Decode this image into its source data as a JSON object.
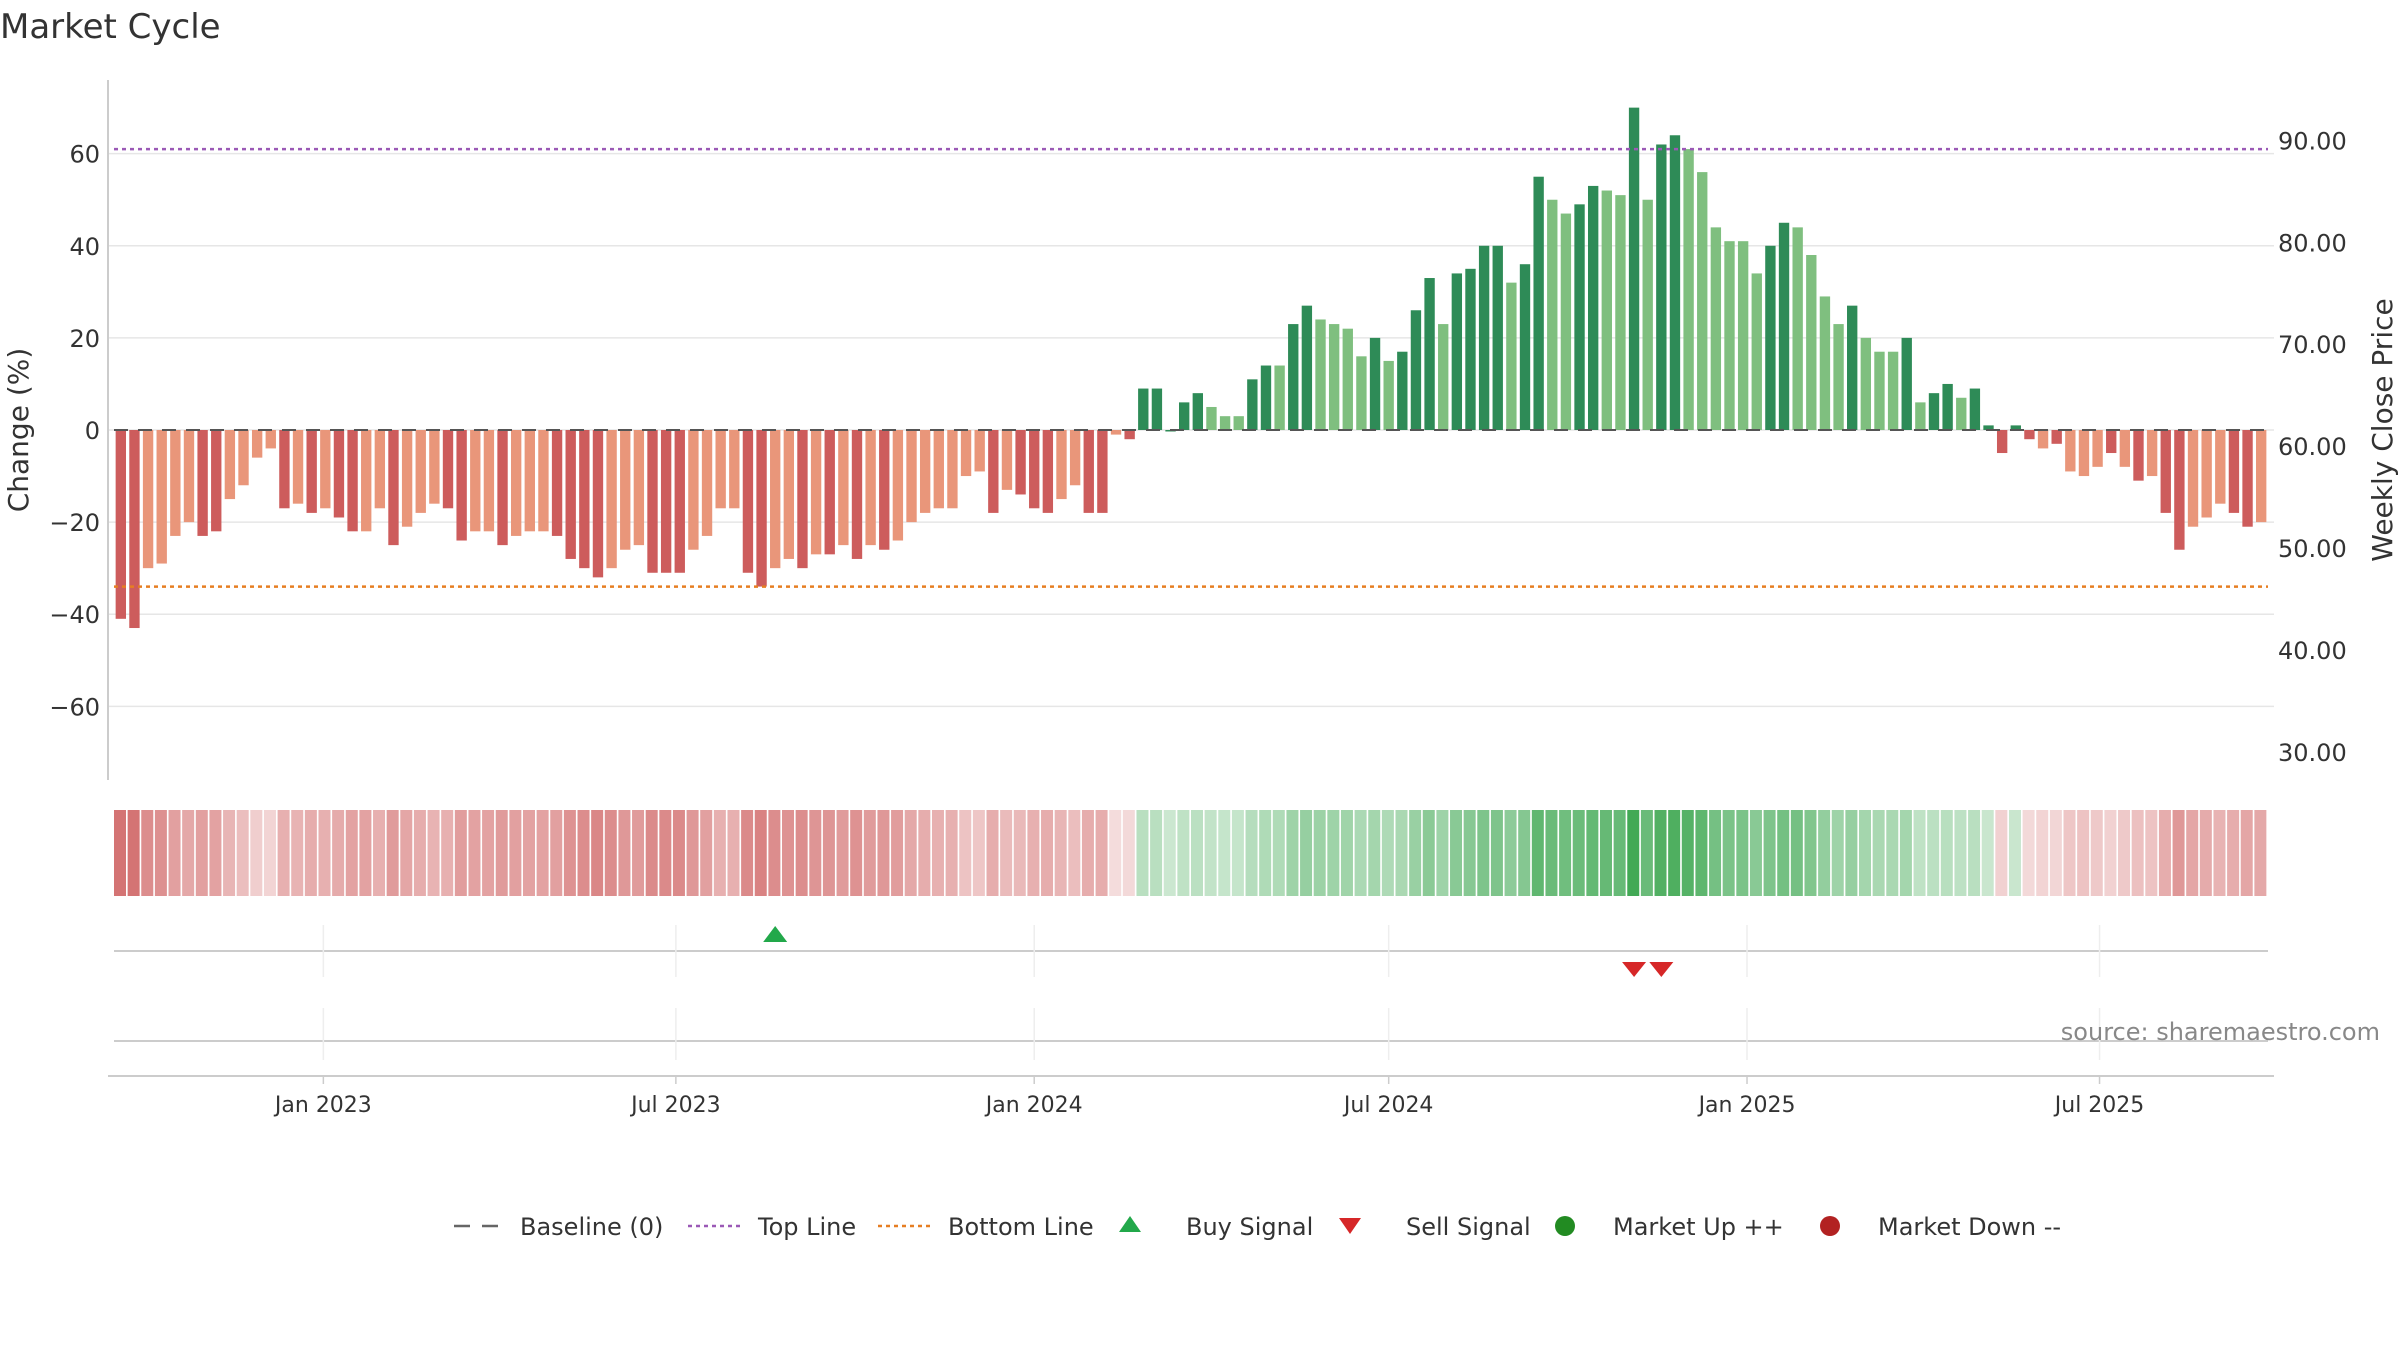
{
  "chart_data": {
    "type": "bar",
    "title": "Market Cycle",
    "ylabel": "Change (%)",
    "y2label": "Weekly Close Price",
    "source": "source: sharemaestro.com",
    "ylim": [
      -76,
      76
    ],
    "y2lim": [
      27.27,
      95.91
    ],
    "yticks": [
      "60",
      "40",
      "20",
      "0",
      "−20",
      "−40",
      "−60"
    ],
    "ytick_values": [
      60,
      40,
      20,
      0,
      -20,
      -40,
      -60
    ],
    "y2ticks": [
      "90.00",
      "80.00",
      "70.00",
      "60.00",
      "50.00",
      "40.00",
      "30.00"
    ],
    "y2tick_values": [
      90,
      80,
      70,
      60,
      50,
      40,
      30
    ],
    "xticks": [
      "Jan 2023",
      "Jul 2023",
      "Jan 2024",
      "Jul 2024",
      "Jan 2025",
      "Jul 2025"
    ],
    "xtick_dates": [
      "2023-01-01",
      "2023-07-01",
      "2024-01-01",
      "2024-07-01",
      "2025-01-01",
      "2025-07-01"
    ],
    "start_week": "2022-09-19",
    "end_week": "2025-09-22",
    "top_line": 61,
    "bottom_line": -34,
    "baseline": 0,
    "buy_signals": [
      "2023-08-21"
    ],
    "sell_signals": [
      "2024-11-04",
      "2024-11-18"
    ],
    "colors": {
      "up_strong": "#2e8b57",
      "up_weak": "#7fbf7f",
      "down_strong": "#cd5c5c",
      "down_weak": "#e9967a",
      "top_line": "#9b59b6",
      "bottom_line": "#e67e22",
      "buy": "#22a84a",
      "sell": "#d62728",
      "market_up": "#228b22",
      "market_down": "#b22222"
    },
    "values": [
      -41,
      -43,
      -30,
      -29,
      -23,
      -20,
      -23,
      -22,
      -15,
      -12,
      -6,
      -4,
      -17,
      -16,
      -18,
      -17,
      -19,
      -22,
      -22,
      -17,
      -25,
      -21,
      -18,
      -16,
      -17,
      -24,
      -22,
      -22,
      -25,
      -23,
      -22,
      -22,
      -23,
      -28,
      -30,
      -32,
      -30,
      -26,
      -25,
      -31,
      -31,
      -31,
      -26,
      -23,
      -17,
      -17,
      -31,
      -34,
      -30,
      -28,
      -30,
      -27,
      -27,
      -25,
      -28,
      -25,
      -26,
      -24,
      -20,
      -18,
      -17,
      -17,
      -10,
      -9,
      -18,
      -13,
      -14,
      -17,
      -18,
      -15,
      -12,
      -18,
      -18,
      -1,
      -2,
      9,
      9,
      0,
      6,
      8,
      5,
      3,
      3,
      11,
      14,
      14,
      23,
      27,
      24,
      23,
      22,
      16,
      20,
      15,
      17,
      26,
      33,
      23,
      34,
      35,
      40,
      40,
      32,
      36,
      55,
      50,
      47,
      49,
      53,
      52,
      51,
      70,
      50,
      62,
      64,
      61,
      56,
      44,
      41,
      41,
      34,
      40,
      45,
      44,
      38,
      29,
      23,
      27,
      20,
      17,
      17,
      20,
      6,
      8,
      10,
      7,
      9,
      1,
      -5,
      1,
      -2,
      -4,
      -3,
      -9,
      -10,
      -8,
      -5,
      -8,
      -11,
      -10,
      -18,
      -26,
      -21,
      -19,
      -16,
      -18,
      -21,
      -20
    ],
    "shades": [
      1,
      1,
      0,
      0,
      0,
      0,
      1,
      1,
      0,
      0,
      0,
      0,
      1,
      0,
      1,
      0,
      1,
      1,
      0,
      0,
      1,
      0,
      0,
      0,
      1,
      1,
      0,
      0,
      1,
      0,
      0,
      0,
      1,
      1,
      1,
      1,
      0,
      0,
      0,
      1,
      1,
      1,
      0,
      0,
      0,
      0,
      1,
      1,
      0,
      0,
      1,
      0,
      1,
      0,
      1,
      0,
      1,
      0,
      0,
      0,
      0,
      0,
      0,
      0,
      1,
      0,
      1,
      1,
      1,
      0,
      0,
      1,
      1,
      0,
      1,
      1,
      1,
      1,
      1,
      1,
      0,
      0,
      0,
      1,
      1,
      0,
      1,
      1,
      0,
      0,
      0,
      0,
      1,
      0,
      1,
      1,
      1,
      0,
      1,
      1,
      1,
      1,
      0,
      1,
      1,
      0,
      0,
      1,
      1,
      0,
      0,
      1,
      0,
      1,
      1,
      0,
      0,
      0,
      0,
      0,
      0,
      1,
      1,
      0,
      0,
      0,
      0,
      1,
      0,
      0,
      0,
      1,
      0,
      1,
      1,
      0,
      1,
      1,
      1,
      1,
      1,
      0,
      1,
      0,
      0,
      0,
      1,
      0,
      1,
      0,
      1,
      1,
      0,
      0,
      0,
      1,
      1,
      0
    ],
    "legend": [
      "Baseline (0)",
      "Top Line",
      "Bottom Line",
      "Buy Signal",
      "Sell Signal",
      "Market Up ++",
      "Market Down --"
    ],
    "legend_keys": [
      "dash",
      "dotted-top",
      "dotted-bottom",
      "tri-up",
      "tri-down",
      "dot-up",
      "dot-down"
    ]
  }
}
